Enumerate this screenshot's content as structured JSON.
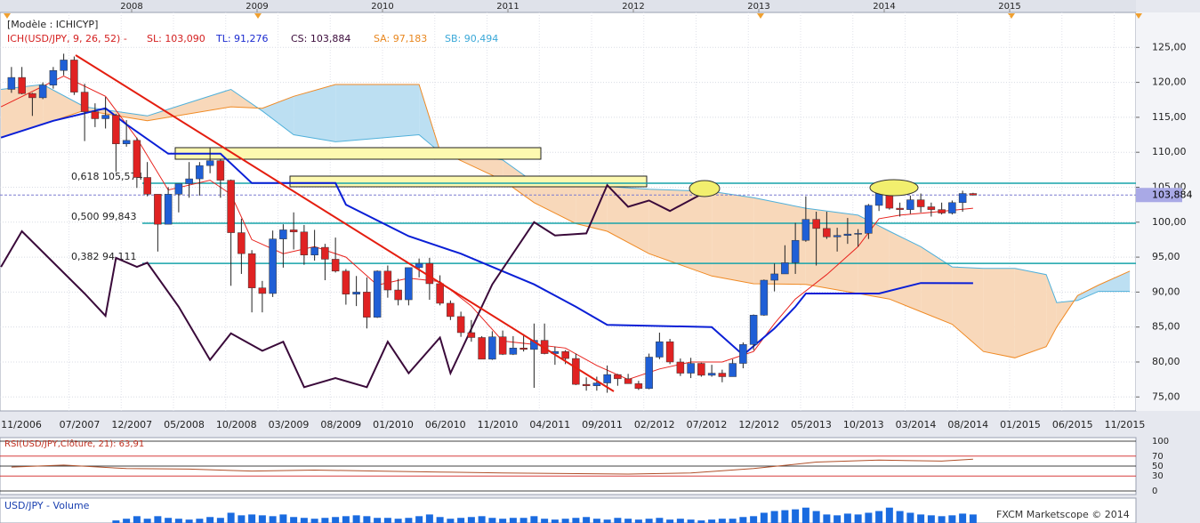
{
  "chart_data": {
    "type": "candlestick",
    "header": "[Modèle : ICHICYP]",
    "indicator_labels": [
      {
        "text": "ICH(USD/JPY, 9, 26, 52) -",
        "color": "#d42020"
      },
      {
        "text": "SL: 103,090",
        "color": "#d42020"
      },
      {
        "text": "TL: 91,276",
        "color": "#1a2ad0"
      },
      {
        "text": "CS: 103,884",
        "color": "#3a0a3a"
      },
      {
        "text": "SA: 97,183",
        "color": "#e8861e"
      },
      {
        "text": "SB: 90,494",
        "color": "#3aa8d8"
      }
    ],
    "x": [
      "01/2007",
      "02/2007",
      "03/2007",
      "04/2007",
      "05/2007",
      "06/2007",
      "07/2007",
      "08/2007",
      "09/2007",
      "10/2007",
      "11/2007",
      "12/2007",
      "01/2008",
      "02/2008",
      "03/2008",
      "04/2008",
      "05/2008",
      "06/2008",
      "07/2008",
      "08/2008",
      "09/2008",
      "10/2008",
      "11/2008",
      "12/2008",
      "01/2009",
      "02/2009",
      "03/2009",
      "04/2009",
      "05/2009",
      "06/2009",
      "07/2009",
      "08/2009",
      "09/2009",
      "10/2009",
      "11/2009",
      "12/2009",
      "01/2010",
      "02/2010",
      "03/2010",
      "04/2010",
      "05/2010",
      "06/2010",
      "07/2010",
      "08/2010",
      "09/2010",
      "10/2010",
      "11/2010",
      "12/2010",
      "01/2011",
      "02/2011",
      "03/2011",
      "04/2011",
      "05/2011",
      "06/2011",
      "07/2011",
      "08/2011",
      "09/2011",
      "10/2011",
      "11/2011",
      "12/2011",
      "01/2012",
      "02/2012",
      "03/2012",
      "04/2012",
      "05/2012",
      "06/2012",
      "07/2012",
      "08/2012",
      "09/2012",
      "10/2012",
      "11/2012",
      "12/2012",
      "01/2013",
      "02/2013",
      "03/2013",
      "04/2013",
      "05/2013",
      "06/2013",
      "07/2013",
      "08/2013",
      "09/2013",
      "10/2013",
      "11/2013",
      "12/2013",
      "01/2014",
      "02/2014",
      "03/2014",
      "04/2014",
      "05/2014",
      "06/2014",
      "07/2014",
      "08/2014",
      "09/2014"
    ],
    "open": [
      119.0,
      120.7,
      118.4,
      117.8,
      119.6,
      121.7,
      123.2,
      118.6,
      115.8,
      114.8,
      115.3,
      111.2,
      111.7,
      106.4,
      104.0,
      99.7,
      104.0,
      105.5,
      106.2,
      108.1,
      108.8,
      106.0,
      98.5,
      95.5,
      90.6,
      89.8,
      97.6,
      98.9,
      98.6,
      95.3,
      96.4,
      94.7,
      93.0,
      89.7,
      90.0,
      86.4,
      93.0,
      90.3,
      88.9,
      93.5,
      94.1,
      91.2,
      88.4,
      86.5,
      84.2,
      83.5,
      80.4,
      83.6,
      81.1,
      82.0,
      81.8,
      83.1,
      81.2,
      81.5,
      80.5,
      76.8,
      76.6,
      77.0,
      78.2,
      77.6,
      76.9,
      76.2,
      80.7,
      82.9,
      80.0,
      78.4,
      79.8,
      78.1,
      78.4,
      77.9,
      79.8,
      82.5,
      86.7,
      91.7,
      92.6,
      94.2,
      97.4,
      100.4,
      99.1,
      97.9,
      98.1,
      98.3,
      98.4,
      102.4,
      105.3,
      102.0,
      101.8,
      103.2,
      102.2,
      101.8,
      101.3,
      102.8,
      104.1
    ],
    "high": [
      122.2,
      122.2,
      118.5,
      120.0,
      122.2,
      124.1,
      123.7,
      119.8,
      117.0,
      117.9,
      115.5,
      114.6,
      112.1,
      108.6,
      104.0,
      105.0,
      105.5,
      108.6,
      108.6,
      110.7,
      109.0,
      106.1,
      100.5,
      96.0,
      91.6,
      98.8,
      99.7,
      101.4,
      99.6,
      98.9,
      96.9,
      97.8,
      93.3,
      92.3,
      92.1,
      93.1,
      93.8,
      91.9,
      93.5,
      94.8,
      94.9,
      92.4,
      88.8,
      87.2,
      86.0,
      83.7,
      84.4,
      84.5,
      83.7,
      84.0,
      85.5,
      85.5,
      82.2,
      81.7,
      81.2,
      77.8,
      77.9,
      79.5,
      78.3,
      78.3,
      77.3,
      81.2,
      84.2,
      83.3,
      80.5,
      80.6,
      79.9,
      79.6,
      78.9,
      80.4,
      82.8,
      86.8,
      91.8,
      94.1,
      96.7,
      99.9,
      103.7,
      101.5,
      101.5,
      99.2,
      100.6,
      99.0,
      102.6,
      105.4,
      105.4,
      102.8,
      103.8,
      104.1,
      102.8,
      102.8,
      103.1,
      104.5,
      104.2
    ],
    "low": [
      118.5,
      118.3,
      115.2,
      117.6,
      119.1,
      121.0,
      118.2,
      111.6,
      113.6,
      113.4,
      107.2,
      110.8,
      104.9,
      103.7,
      95.8,
      99.7,
      101.4,
      103.5,
      103.8,
      107.0,
      103.5,
      90.9,
      92.6,
      87.1,
      87.1,
      89.3,
      93.5,
      96.1,
      93.9,
      94.5,
      91.7,
      92.8,
      88.2,
      88.0,
      84.8,
      86.3,
      89.2,
      88.1,
      88.1,
      92.1,
      88.9,
      88.1,
      86.0,
      83.6,
      82.9,
      80.4,
      80.3,
      81.0,
      81.0,
      81.5,
      76.3,
      81.1,
      79.6,
      79.7,
      76.7,
      75.9,
      75.9,
      75.6,
      76.6,
      76.9,
      76.0,
      76.1,
      80.4,
      79.7,
      78.0,
      77.7,
      77.9,
      77.9,
      77.1,
      77.9,
      79.1,
      81.7,
      86.6,
      90.1,
      92.6,
      92.6,
      97.2,
      93.8,
      97.6,
      95.8,
      96.9,
      96.5,
      97.6,
      101.6,
      101.8,
      100.8,
      101.2,
      101.4,
      100.8,
      101.1,
      101.1,
      101.5,
      103.8
    ],
    "close": [
      120.7,
      118.4,
      117.8,
      119.6,
      121.7,
      123.2,
      118.6,
      115.8,
      114.8,
      115.3,
      111.2,
      111.7,
      106.4,
      104.0,
      99.7,
      104.0,
      105.5,
      106.2,
      108.1,
      108.8,
      106.0,
      98.5,
      95.5,
      90.6,
      89.8,
      97.6,
      98.9,
      98.6,
      95.3,
      96.4,
      94.7,
      93.0,
      89.7,
      90.0,
      86.4,
      93.0,
      90.3,
      88.9,
      93.5,
      94.1,
      91.2,
      88.4,
      86.5,
      84.2,
      83.5,
      80.4,
      83.6,
      81.1,
      82.0,
      81.8,
      83.1,
      81.2,
      81.5,
      80.5,
      76.8,
      76.6,
      77.0,
      78.2,
      77.6,
      76.9,
      76.2,
      80.7,
      82.9,
      80.0,
      78.4,
      79.8,
      78.1,
      78.4,
      77.9,
      79.8,
      82.5,
      86.7,
      91.7,
      92.6,
      94.2,
      97.4,
      100.4,
      99.1,
      97.9,
      98.1,
      98.3,
      98.4,
      102.4,
      105.3,
      102.0,
      101.8,
      103.2,
      102.2,
      101.8,
      101.3,
      102.8,
      104.1,
      103.884
    ],
    "up_color": "#1f5fd6",
    "down_color": "#e02222",
    "ylim": [
      73,
      130
    ],
    "yticks": [
      {
        "value": 75,
        "label": "75,00"
      },
      {
        "value": 80,
        "label": "80,00"
      },
      {
        "value": 85,
        "label": "85,00"
      },
      {
        "value": 90,
        "label": "90,00"
      },
      {
        "value": 95,
        "label": "95,00"
      },
      {
        "value": 100,
        "label": "100,00"
      },
      {
        "value": 105,
        "label": "105,00"
      },
      {
        "value": 110,
        "label": "110,00"
      },
      {
        "value": 115,
        "label": "115,00"
      },
      {
        "value": 120,
        "label": "120,00"
      },
      {
        "value": 125,
        "label": "125,00"
      }
    ],
    "grid": true,
    "top_xticks": [
      {
        "value": "01/2008",
        "label": "2008"
      },
      {
        "value": "01/2009",
        "label": "2009"
      },
      {
        "value": "01/2010",
        "label": "2010"
      },
      {
        "value": "01/2011",
        "label": "2011"
      },
      {
        "value": "01/2012",
        "label": "2012"
      },
      {
        "value": "01/2013",
        "label": "2013"
      },
      {
        "value": "01/2014",
        "label": "2014"
      },
      {
        "value": "01/2015",
        "label": "2015"
      }
    ],
    "xticks": [
      "11/2006",
      "07/2007",
      "12/2007",
      "05/2008",
      "10/2008",
      "03/2009",
      "08/2009",
      "01/2010",
      "06/2010",
      "11/2010",
      "04/2011",
      "09/2011",
      "02/2012",
      "07/2012",
      "12/2012",
      "05/2013",
      "10/2013",
      "03/2014",
      "08/2014",
      "01/2015",
      "06/2015",
      "11/2015"
    ],
    "lines": [
      {
        "color": "#e8231e",
        "width": 1,
        "x": [
          "12/2006",
          "06/2007",
          "10/2007",
          "01/2008",
          "04/2008",
          "08/2008",
          "10/2008",
          "12/2008",
          "03/2009",
          "06/2009",
          "09/2009",
          "12/2009",
          "03/2010",
          "06/2010",
          "09/2010",
          "12/2010",
          "03/2011",
          "06/2011",
          "09/2011",
          "12/2011",
          "03/2012",
          "06/2012",
          "09/2012",
          "12/2012",
          "02/2013",
          "04/2013",
          "07/2013",
          "10/2013",
          "12/2013",
          "02/2014",
          "05/2014",
          "09/2014"
        ],
        "values": [
          116.5,
          120.9,
          118.0,
          112.0,
          104.6,
          106.0,
          104.0,
          97.5,
          95.5,
          96.5,
          95.0,
          91.0,
          92.0,
          91.5,
          88.0,
          83.0,
          82.5,
          82.0,
          79.5,
          77.5,
          79.0,
          80.0,
          80.0,
          81.5,
          85.5,
          89.0,
          92.5,
          96.5,
          100.5,
          101.0,
          101.4,
          102.0
        ]
      },
      {
        "color": "#0a1fd6",
        "width": 2,
        "x": [
          "12/2006",
          "05/2007",
          "10/2007",
          "12/2007",
          "04/2008",
          "09/2008",
          "12/2008",
          "08/2009",
          "09/2009",
          "03/2010",
          "08/2010",
          "11/2010",
          "03/2011",
          "07/2011",
          "10/2011",
          "08/2012",
          "11/2012",
          "02/2013",
          "04/2013",
          "05/2013",
          "12/2013",
          "04/2014",
          "09/2014"
        ],
        "values": [
          112.1,
          114.5,
          116.3,
          114.0,
          109.8,
          109.8,
          105.6,
          105.6,
          102.5,
          98.0,
          95.5,
          93.6,
          91.1,
          87.9,
          85.3,
          85.0,
          81.0,
          84.8,
          87.9,
          89.8,
          89.8,
          91.3,
          91.276
        ]
      },
      {
        "color": "#3a0a3a",
        "width": 2,
        "x": [
          "12/2006",
          "02/2007",
          "08/2007",
          "10/2007",
          "11/2007",
          "01/2008",
          "02/2008",
          "05/2008",
          "08/2008",
          "10/2008",
          "01/2009",
          "03/2009",
          "05/2009",
          "08/2009",
          "11/2009",
          "01/2010",
          "03/2010",
          "06/2010",
          "07/2010",
          "11/2010",
          "03/2011",
          "05/2011",
          "08/2011",
          "10/2011",
          "12/2011",
          "02/2012",
          "04/2012",
          "07/2012"
        ],
        "values": [
          93.6,
          98.7,
          89.8,
          86.6,
          94.9,
          93.6,
          94.2,
          87.9,
          80.3,
          84.1,
          81.6,
          82.9,
          76.4,
          77.7,
          76.4,
          82.9,
          78.4,
          83.5,
          78.4,
          91.1,
          100.0,
          98.1,
          98.4,
          105.3,
          102.2,
          103.1,
          101.6,
          104.0
        ]
      }
    ],
    "cloud": {
      "x": [
        "12/2006",
        "04/2007",
        "08/2007",
        "02/2008",
        "10/2008",
        "01/2009",
        "04/2009",
        "08/2009",
        "04/2010",
        "06/2010",
        "12/2010",
        "03/2011",
        "07/2011",
        "10/2011",
        "02/2012",
        "08/2012",
        "12/2012",
        "05/2013",
        "10/2013",
        "01/2014",
        "04/2014",
        "07/2014",
        "10/2014",
        "01/2015",
        "04/2015",
        "05/2015",
        "07/2015",
        "09/2015",
        "12/2015"
      ],
      "a": [
        119.0,
        119.7,
        116.5,
        115.2,
        119.0,
        115.9,
        112.5,
        111.5,
        112.5,
        110.0,
        108.9,
        105.7,
        105.4,
        105.1,
        104.7,
        104.4,
        103.5,
        102.0,
        101.0,
        98.7,
        96.5,
        93.6,
        93.4,
        93.4,
        92.5,
        88.5,
        88.8,
        90.1,
        90.1
      ],
      "b": [
        112.1,
        114.0,
        116.0,
        114.5,
        116.5,
        116.3,
        118.0,
        119.7,
        119.7,
        110.2,
        106.0,
        102.8,
        99.8,
        98.7,
        95.5,
        92.3,
        91.2,
        91.1,
        89.8,
        89.0,
        87.2,
        85.4,
        81.5,
        80.6,
        82.2,
        85.0,
        89.5,
        91.0,
        93.0
      ],
      "a_color": "#4fb0da",
      "b_color": "#f08a24",
      "a_above_fill": "#f8d8ba",
      "b_above_fill": "#bcdff2"
    },
    "fib_levels": [
      {
        "value": 105.574,
        "label": "0,618 105,574"
      },
      {
        "value": 99.843,
        "label": "0,500 99,843"
      },
      {
        "value": 94.111,
        "label": "0,382 94,111"
      }
    ],
    "fib_color": "#17a3aa",
    "last_price": {
      "value": 103.884,
      "label": "103,884"
    },
    "rsi": {
      "title": "RSI(USD/JPY,Clôture, 21): 63,91",
      "x": [
        "01/2007",
        "06/2007",
        "12/2007",
        "06/2008",
        "12/2008",
        "06/2009",
        "12/2009",
        "06/2010",
        "12/2010",
        "06/2011",
        "12/2011",
        "06/2012",
        "12/2012",
        "06/2013",
        "12/2013",
        "06/2014",
        "09/2014"
      ],
      "values": [
        48,
        52,
        45,
        44,
        40,
        42,
        40,
        38,
        36,
        35,
        34,
        36,
        45,
        58,
        62,
        60,
        63.91
      ],
      "color": "#b0502a",
      "ylim": [
        0,
        100
      ],
      "yticks": [
        0,
        30,
        50,
        70,
        100
      ],
      "level_colors": [
        "#000000",
        "#d02020",
        "#000000",
        "#d02020",
        "#000000"
      ]
    },
    "volume": {
      "title": "USD/JPY - Volume",
      "color": "#1a6be0",
      "vlim": [
        0,
        25
      ],
      "values": [
        null,
        null,
        null,
        null,
        null,
        null,
        null,
        null,
        null,
        null,
        3,
        5,
        8,
        5,
        8,
        6,
        5,
        4,
        5,
        7,
        6,
        12,
        9,
        10,
        9,
        8,
        10,
        7,
        6,
        5,
        6,
        7,
        8,
        9,
        8,
        6,
        6,
        5,
        6,
        8,
        10,
        7,
        5,
        6,
        7,
        8,
        6,
        5,
        6,
        6,
        8,
        5,
        4,
        5,
        6,
        7,
        5,
        4,
        6,
        5,
        4,
        5,
        6,
        4,
        5,
        4,
        3,
        4,
        5,
        5,
        7,
        8,
        12,
        14,
        15,
        16,
        18,
        14,
        10,
        9,
        11,
        10,
        12,
        14,
        18,
        14,
        12,
        10,
        9,
        8,
        9,
        11,
        10
      ]
    },
    "footer": "FXCM Marketscope © 2014"
  }
}
